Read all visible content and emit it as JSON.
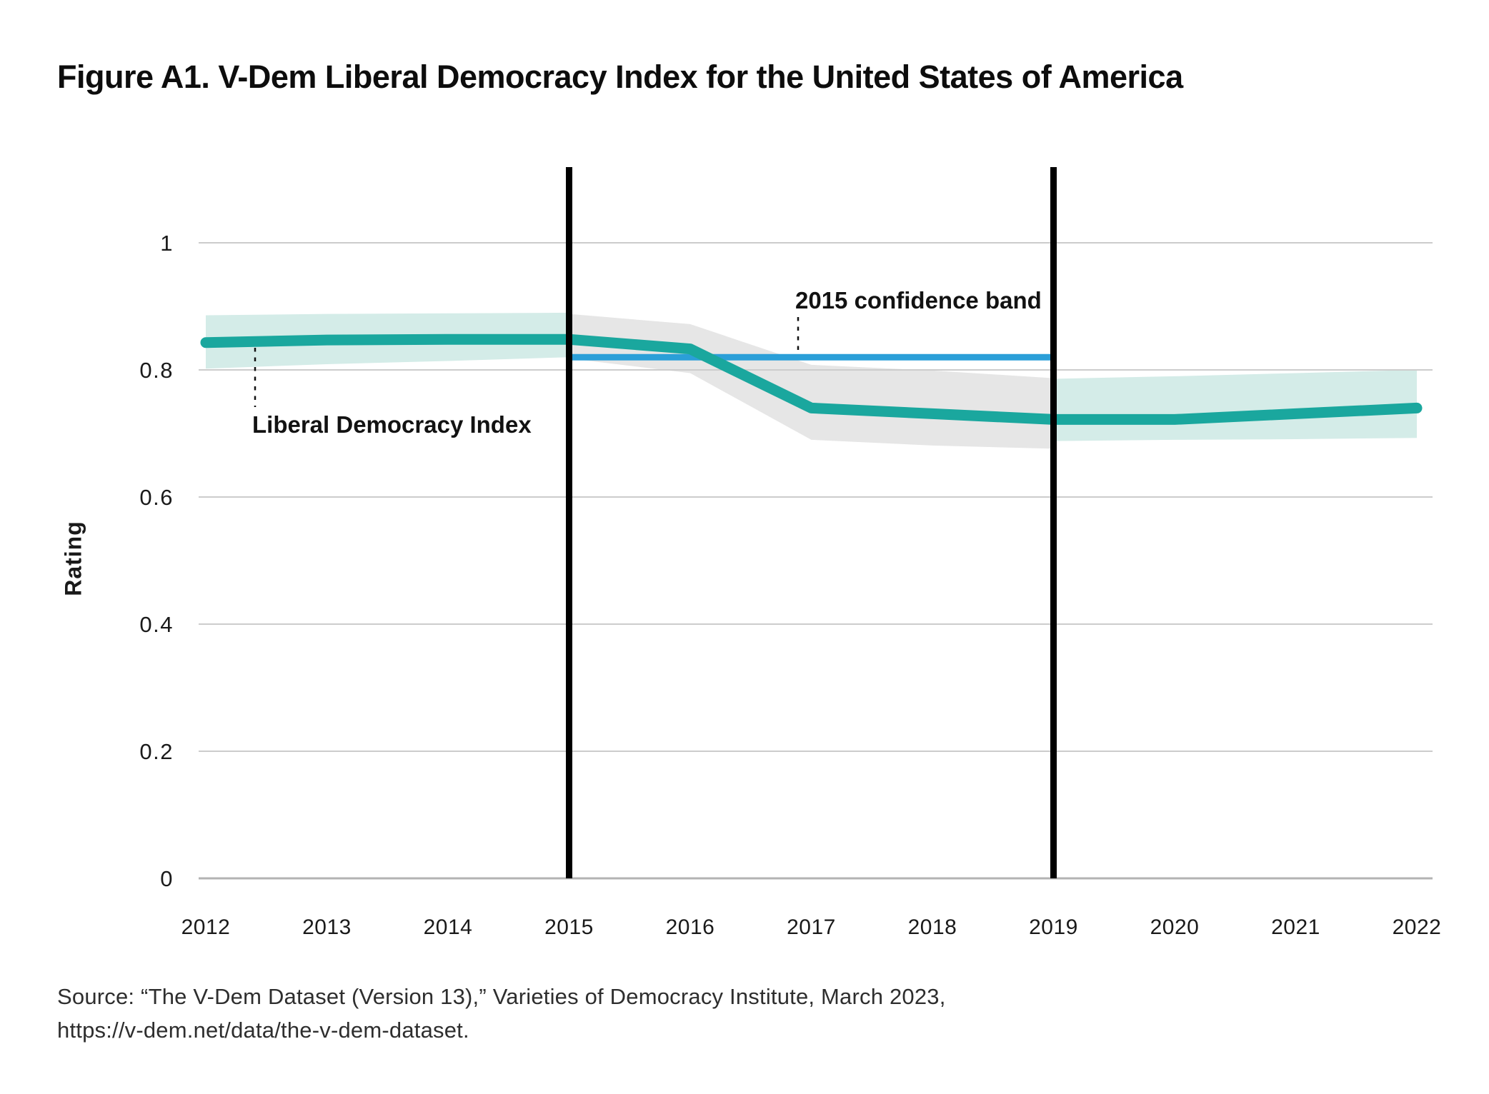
{
  "title": "Figure A1. V-Dem Liberal Democracy Index for the United States of America",
  "source": {
    "line1": "Source: “The V-Dem Dataset (Version 13),” Varieties of Democracy Institute, March 2023,",
    "line2": "https://v-dem.net/data/the-v-dem-dataset."
  },
  "colors": {
    "teal_line": "#1AA79E",
    "teal_band": "#D4ECE8",
    "gray_band": "#E6E6E6",
    "blue_line": "#2B9FD8",
    "vline": "#000000",
    "gridline": "#CCCCCC",
    "axis_line": "#B3B3B3",
    "leader": "#111111"
  },
  "chart_data": {
    "type": "line",
    "title": "Figure A1. V-Dem Liberal Democracy Index for the United States of America",
    "xlabel": "",
    "ylabel": "Rating",
    "x": [
      2012,
      2013,
      2014,
      2015,
      2016,
      2017,
      2018,
      2019,
      2020,
      2021,
      2022
    ],
    "x_tick_labels": [
      "2012",
      "2013",
      "2014",
      "2015",
      "2016",
      "2017",
      "2018",
      "2019",
      "2020",
      "2021",
      "2022"
    ],
    "y_ticks": [
      0,
      0.2,
      0.4,
      0.6,
      0.8,
      1
    ],
    "y_tick_labels": [
      "0",
      "0.2",
      "0.4",
      "0.6",
      "0.8",
      "1"
    ],
    "ylim": [
      0,
      1.12
    ],
    "grid": "horizontal",
    "legend_position": "none",
    "series": [
      {
        "name": "Liberal Democracy Index",
        "color": "#1AA79E",
        "values": [
          0.843,
          0.847,
          0.848,
          0.848,
          0.833,
          0.74,
          0.731,
          0.722,
          0.722,
          0.731,
          0.74
        ]
      },
      {
        "name": "2015 confidence band",
        "color": "#2B9FD8",
        "style": "horizontal-reference-line",
        "x_range": [
          2015,
          2019
        ],
        "value": 0.82
      }
    ],
    "bands": [
      {
        "name": "confidence-band-2012-2015",
        "color": "#D4ECE8",
        "x": [
          2012,
          2013,
          2014,
          2015
        ],
        "lower": [
          0.802,
          0.809,
          0.814,
          0.82
        ],
        "upper": [
          0.886,
          0.888,
          0.889,
          0.89
        ]
      },
      {
        "name": "confidence-band-2015-2019",
        "color": "#E6E6E6",
        "x": [
          2015,
          2016,
          2017,
          2018,
          2019
        ],
        "lower": [
          0.818,
          0.795,
          0.69,
          0.681,
          0.676
        ],
        "upper": [
          0.888,
          0.872,
          0.808,
          0.799,
          0.787
        ]
      },
      {
        "name": "confidence-band-2019-2022",
        "color": "#D4ECE8",
        "x": [
          2019,
          2020,
          2021,
          2022
        ],
        "lower": [
          0.688,
          0.69,
          0.691,
          0.693
        ],
        "upper": [
          0.786,
          0.79,
          0.795,
          0.8
        ]
      }
    ],
    "vlines": [
      {
        "name": "vline-2015",
        "x": 2015
      },
      {
        "name": "vline-2019",
        "x": 2019
      }
    ],
    "annotations": [
      {
        "text": "2015 confidence band"
      },
      {
        "text": "Liberal Democracy Index"
      }
    ]
  }
}
